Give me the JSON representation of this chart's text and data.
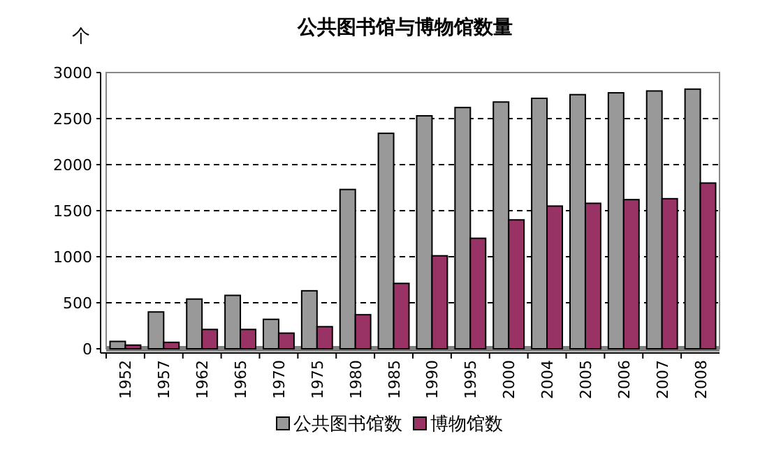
{
  "chart_data": {
    "type": "bar",
    "title": "公共图书馆与博物馆数量",
    "ylabel": "个",
    "categories": [
      "1952",
      "1957",
      "1962",
      "1965",
      "1970",
      "1975",
      "1980",
      "1985",
      "1990",
      "1995",
      "2000",
      "2004",
      "2005",
      "2006",
      "2007",
      "2008"
    ],
    "series": [
      {
        "name": "公共图书馆数",
        "color": "#999999",
        "values": [
          80,
          400,
          540,
          580,
          320,
          630,
          1730,
          2340,
          2530,
          2620,
          2680,
          2720,
          2760,
          2780,
          2800,
          2820
        ]
      },
      {
        "name": "博物馆数",
        "color": "#993366",
        "values": [
          40,
          70,
          210,
          210,
          170,
          240,
          370,
          710,
          1010,
          1200,
          1400,
          1550,
          1580,
          1620,
          1630,
          1800
        ]
      }
    ],
    "ylim": [
      0,
      3000
    ],
    "yticks": [
      0,
      500,
      1000,
      1500,
      2000,
      2500,
      3000
    ],
    "grid": "y",
    "legend": "bottom"
  }
}
